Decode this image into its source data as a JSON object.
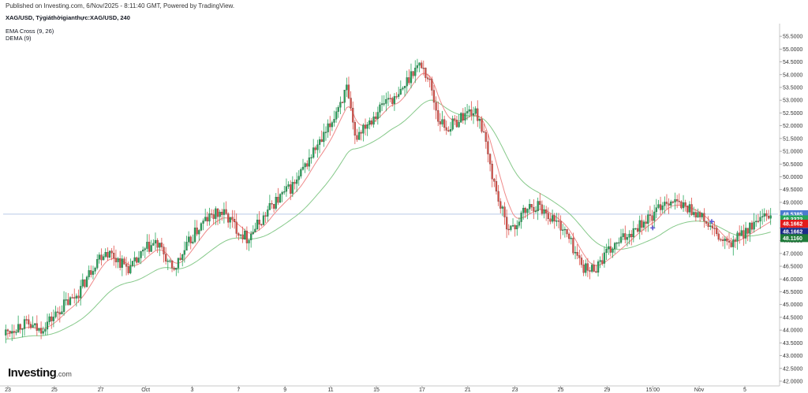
{
  "header": {
    "published": "Published on Investing.com, 6/Nov/2025 - 8:11:40 GMT, Powered by TradingView.",
    "symbol": "XAG/USD, Tỷgiáthờigianthực:XAG/USD, 240",
    "indicator1": "EMA Cross (9, 26)",
    "indicator2": "DEMA (9)"
  },
  "logo": {
    "main": "Investing",
    "suffix": ".com"
  },
  "colors": {
    "up": "#26a65b",
    "down": "#e0524a",
    "ema_fast": "#ef8a8a",
    "ema_slow": "#86c98a",
    "dema": "#5b5bd6",
    "price_line": "#b9c9e8"
  },
  "chart_data": {
    "type": "candlestick",
    "instrument": "XAG/USD",
    "timeframe": "240",
    "ylim": [
      42.0,
      55.75
    ],
    "y_ticks": [
      "55.5000",
      "55.0000",
      "54.5000",
      "54.0000",
      "53.5000",
      "53.0000",
      "52.5000",
      "52.0000",
      "51.5000",
      "51.0000",
      "50.5000",
      "50.0000",
      "49.5000",
      "49.0000",
      "48.5000",
      "48.0000",
      "47.5000",
      "47.0000",
      "46.5000",
      "46.0000",
      "45.5000",
      "45.0000",
      "44.5000",
      "44.0000",
      "43.5000",
      "43.0000",
      "42.5000",
      "42.0000"
    ],
    "x_ticks": [
      {
        "label": "23",
        "pos": 0.0
      },
      {
        "label": "25",
        "pos": 0.063
      },
      {
        "label": "27",
        "pos": 0.126
      },
      {
        "label": "Oct",
        "pos": 0.187
      },
      {
        "label": "3",
        "pos": 0.25
      },
      {
        "label": "7",
        "pos": 0.313
      },
      {
        "label": "9",
        "pos": 0.376
      },
      {
        "label": "11",
        "pos": 0.438
      },
      {
        "label": "15",
        "pos": 0.5
      },
      {
        "label": "17",
        "pos": 0.562
      },
      {
        "label": "21",
        "pos": 0.624
      },
      {
        "label": "23",
        "pos": 0.688
      },
      {
        "label": "25",
        "pos": 0.75
      },
      {
        "label": "29",
        "pos": 0.813
      },
      {
        "label": "15:00",
        "pos": 0.875
      },
      {
        "label": "Nov",
        "pos": 0.938
      },
      {
        "label": "5",
        "pos": 1.0
      }
    ],
    "close_path": [
      43.9,
      44.1,
      44.25,
      44.15,
      44.0,
      44.3,
      44.6,
      45.0,
      45.2,
      45.6,
      46.2,
      46.8,
      47.1,
      46.9,
      46.6,
      46.4,
      46.8,
      47.2,
      47.4,
      47.0,
      46.3,
      46.8,
      47.4,
      47.9,
      48.3,
      48.5,
      48.6,
      48.3,
      47.9,
      47.6,
      48.0,
      48.4,
      48.9,
      49.2,
      49.5,
      49.8,
      50.4,
      51.0,
      51.4,
      52.0,
      52.8,
      53.4,
      51.5,
      52.0,
      52.3,
      52.7,
      53.1,
      53.0,
      53.6,
      54.2,
      54.4,
      53.7,
      52.3,
      51.9,
      52.1,
      52.4,
      52.6,
      52.3,
      50.8,
      49.4,
      48.3,
      47.9,
      48.5,
      48.8,
      48.9,
      48.6,
      48.3,
      48.0,
      47.4,
      46.7,
      46.3,
      46.5,
      46.9,
      47.2,
      47.5,
      47.8,
      48.1,
      48.3,
      48.5,
      49.0,
      49.1,
      48.9,
      48.8,
      48.6,
      48.3,
      47.9,
      47.5,
      47.3,
      47.6,
      47.9,
      48.1,
      48.3,
      48.5
    ],
    "series": [
      {
        "name": "EMA Cross (9, 26)"
      },
      {
        "name": "DEMA (9)"
      }
    ],
    "markers": [
      {
        "x_pos": 0.875,
        "y": 48.0
      },
      {
        "x_pos": 0.955,
        "y": 48.25
      }
    ],
    "price_tags": [
      {
        "label": "48.5385",
        "value": 48.5385,
        "color": "#4a7bd0"
      },
      {
        "label": "48.3372",
        "value": 48.3372,
        "color": "#26a65b"
      },
      {
        "label": "48.1662",
        "value": 48.1662,
        "color": "#e21b1b"
      },
      {
        "label": "48.1662",
        "value": 47.85,
        "color": "#1c2b8a"
      },
      {
        "label": "48.1160",
        "value": 47.6,
        "color": "#1f7a3a"
      }
    ],
    "last_price": 48.5385
  }
}
